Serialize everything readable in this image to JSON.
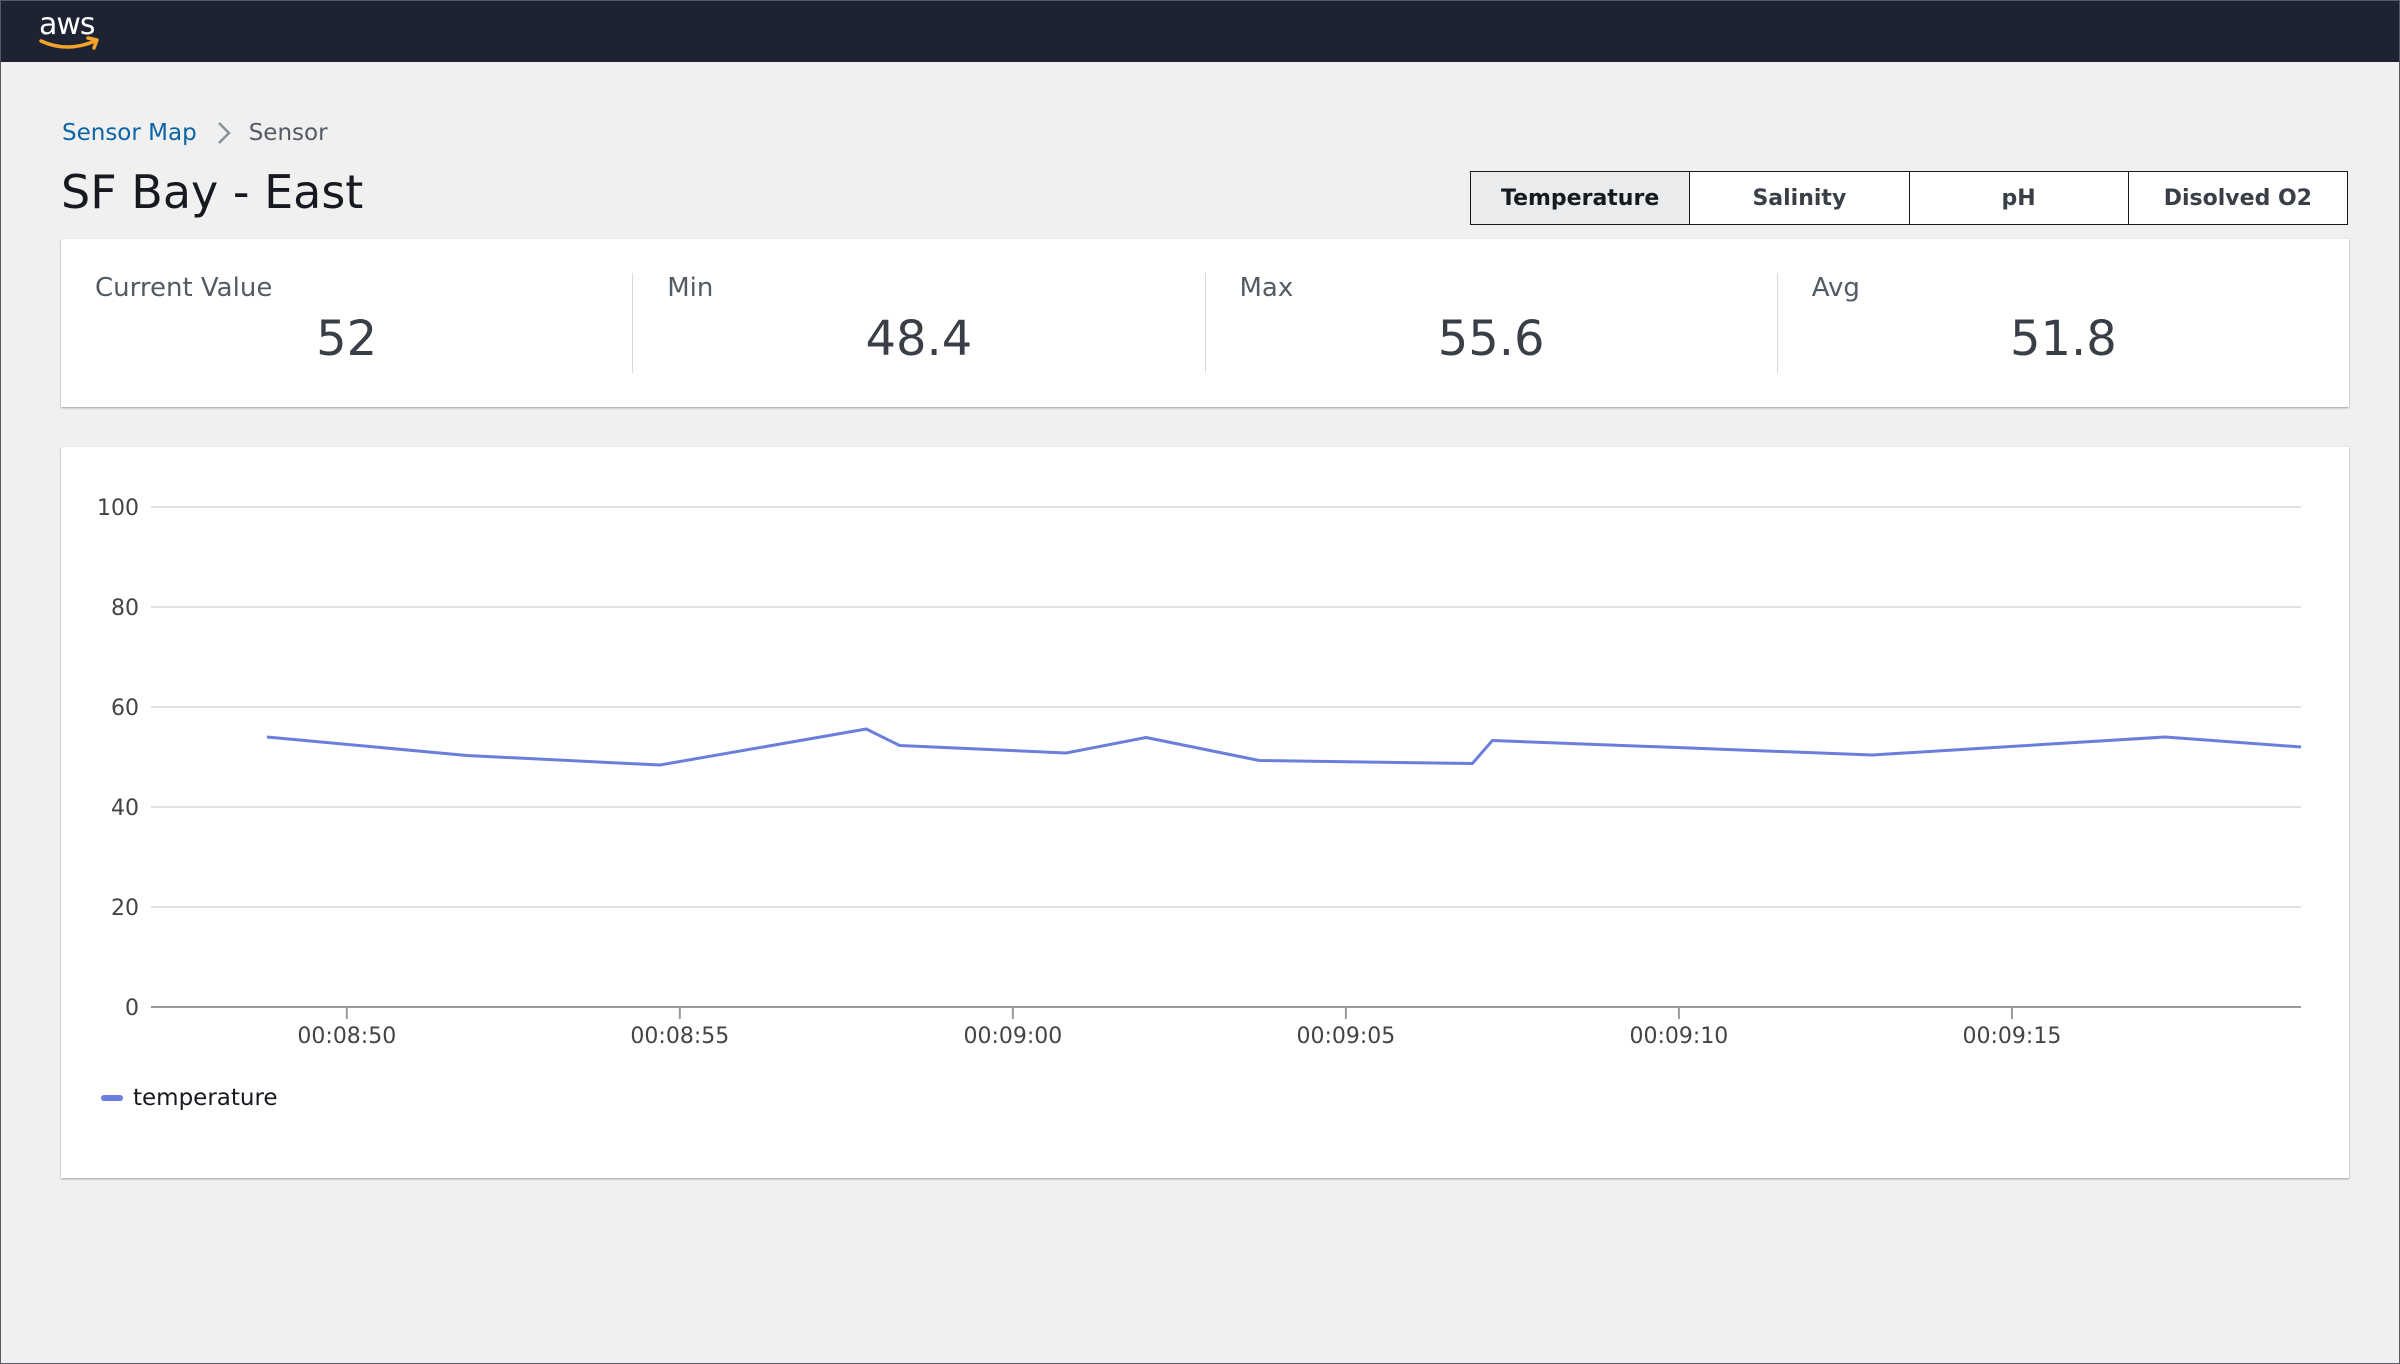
{
  "header": {
    "logo_text": "aws"
  },
  "breadcrumb": {
    "link": "Sensor Map",
    "current": "Sensor"
  },
  "page_title": "SF Bay - East",
  "tabs": [
    {
      "label": "Temperature",
      "selected": true
    },
    {
      "label": "Salinity",
      "selected": false
    },
    {
      "label": "pH",
      "selected": false
    },
    {
      "label": "Disolved O2",
      "selected": false
    }
  ],
  "stats": [
    {
      "label": "Current Value",
      "value": "52"
    },
    {
      "label": "Min",
      "value": "48.4"
    },
    {
      "label": "Max",
      "value": "55.6"
    },
    {
      "label": "Avg",
      "value": "51.8"
    }
  ],
  "colors": {
    "line": "#6a7fdc",
    "link": "#0a64a5",
    "topbar": "#1d2332"
  },
  "chart_data": {
    "type": "line",
    "title": "",
    "xlabel": "",
    "ylabel": "",
    "ylim": [
      0,
      100
    ],
    "yticks": [
      "0",
      "20",
      "40",
      "60",
      "80",
      "100"
    ],
    "xlim": [
      "00:08:47.06",
      "00:09:19.34"
    ],
    "xticks": [
      "00:08:50",
      "00:08:55",
      "00:09:00",
      "00:09:05",
      "00:09:10",
      "00:09:15"
    ],
    "grid": true,
    "legend": "bottom-left",
    "series": [
      {
        "name": "temperature",
        "x": [
          "00:08:48.8",
          "00:08:51.8",
          "00:08:54.7",
          "00:08:57.8",
          "00:08:58.3",
          "00:09:00.8",
          "00:09:02.0",
          "00:09:03.7",
          "00:09:06.9",
          "00:09:07.2",
          "00:09:12.9",
          "00:09:17.3",
          "00:09:19.34"
        ],
        "values": [
          54.0,
          50.3,
          48.4,
          55.6,
          52.3,
          50.8,
          53.9,
          49.3,
          48.7,
          53.3,
          50.4,
          54.0,
          52.0
        ]
      }
    ]
  }
}
